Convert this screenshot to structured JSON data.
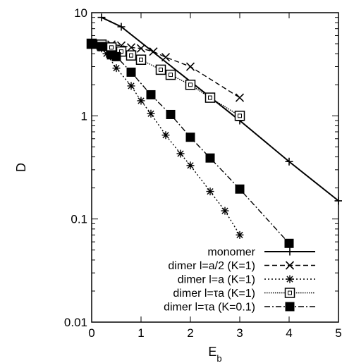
{
  "chart_data": {
    "type": "line",
    "xlabel": "E",
    "xlabel_sub": "b",
    "ylabel": "D",
    "xlim": [
      0,
      5
    ],
    "ylim": [
      0.01,
      10
    ],
    "y_scale": "log",
    "grid": false,
    "legend_position": "bottom-right",
    "x_ticks": [
      {
        "value": 0,
        "label": "0"
      },
      {
        "value": 1,
        "label": "1"
      },
      {
        "value": 2,
        "label": "2"
      },
      {
        "value": 3,
        "label": "3"
      },
      {
        "value": 4,
        "label": "4"
      },
      {
        "value": 5,
        "label": "5"
      }
    ],
    "y_ticks": [
      {
        "value": 10,
        "label": "10"
      },
      {
        "value": 1,
        "label": "1"
      },
      {
        "value": 0.1,
        "label": "0.1"
      },
      {
        "value": 0.01,
        "label": "0.01"
      }
    ],
    "series": [
      {
        "name": "monomer",
        "marker": "plus",
        "line": "solid",
        "points": [
          [
            0.2,
            9.0
          ],
          [
            0.6,
            7.3
          ],
          [
            3.0,
            0.9
          ],
          [
            4.0,
            0.36
          ],
          [
            5.0,
            0.15
          ]
        ]
      },
      {
        "name": "dimer l=a/2 (K=1)",
        "marker": "cross",
        "line": "dashed",
        "points": [
          [
            0.0,
            5.0
          ],
          [
            0.2,
            5.0
          ],
          [
            0.4,
            4.9
          ],
          [
            0.6,
            4.8
          ],
          [
            0.8,
            4.6
          ],
          [
            1.0,
            4.5
          ],
          [
            1.25,
            4.2
          ],
          [
            1.5,
            3.7
          ],
          [
            2.0,
            3.0
          ],
          [
            3.0,
            1.5
          ]
        ]
      },
      {
        "name": "dimer l=a (K=1)",
        "marker": "star",
        "line": "dotted",
        "points": [
          [
            0.0,
            5.0
          ],
          [
            0.2,
            4.5
          ],
          [
            0.3,
            4.0
          ],
          [
            0.5,
            2.9
          ],
          [
            0.8,
            1.95
          ],
          [
            1.0,
            1.4
          ],
          [
            1.2,
            1.05
          ],
          [
            1.5,
            0.65
          ],
          [
            1.8,
            0.43
          ],
          [
            2.0,
            0.33
          ],
          [
            2.4,
            0.185
          ],
          [
            2.7,
            0.12
          ],
          [
            3.0,
            0.07
          ]
        ]
      },
      {
        "name": "dimer l=τa (K=1)",
        "marker": "open-square",
        "line": "dense-dotted",
        "points": [
          [
            0.0,
            5.0
          ],
          [
            0.2,
            4.9
          ],
          [
            0.4,
            4.6
          ],
          [
            0.6,
            4.2
          ],
          [
            0.8,
            3.85
          ],
          [
            1.0,
            3.5
          ],
          [
            1.4,
            2.8
          ],
          [
            1.6,
            2.5
          ],
          [
            2.0,
            2.0
          ],
          [
            2.4,
            1.5
          ],
          [
            3.0,
            1.0
          ]
        ]
      },
      {
        "name": "dimer l=τa (K=0.1)",
        "marker": "filled-square",
        "line": "dash-dot",
        "points": [
          [
            0.0,
            5.0
          ],
          [
            0.2,
            4.7
          ],
          [
            0.4,
            3.9
          ],
          [
            0.5,
            3.75
          ],
          [
            0.8,
            2.65
          ],
          [
            1.2,
            1.6
          ],
          [
            1.6,
            1.03
          ],
          [
            2.0,
            0.62
          ],
          [
            2.4,
            0.39
          ],
          [
            3.0,
            0.195
          ],
          [
            4.0,
            0.058
          ]
        ]
      }
    ]
  }
}
